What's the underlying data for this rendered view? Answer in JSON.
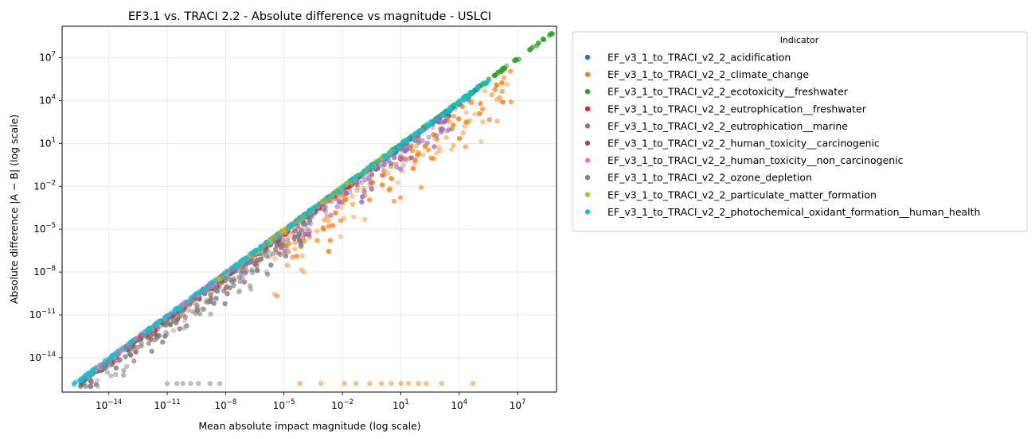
{
  "chart_data": {
    "type": "scatter",
    "title": "EF3.1 vs. TRACI 2.2 - Absolute difference vs magnitude - USLCI",
    "xlabel": "Mean absolute impact magnitude (log scale)",
    "ylabel": "Absolute difference |A − B| (log scale)",
    "xscale": "log",
    "yscale": "log",
    "xlim_log10": [
      -16.4,
      9.0
    ],
    "ylim_log10": [
      -16.4,
      9.2
    ],
    "x_ticks": [
      {
        "exp": -14,
        "base": "10",
        "sup": "−14"
      },
      {
        "exp": -11,
        "base": "10",
        "sup": "−11"
      },
      {
        "exp": -8,
        "base": "10",
        "sup": "−8"
      },
      {
        "exp": -5,
        "base": "10",
        "sup": "−5"
      },
      {
        "exp": -2,
        "base": "10",
        "sup": "−2"
      },
      {
        "exp": 1,
        "base": "10",
        "sup": "1"
      },
      {
        "exp": 4,
        "base": "10",
        "sup": "4"
      },
      {
        "exp": 7,
        "base": "10",
        "sup": "7"
      }
    ],
    "y_ticks": [
      {
        "exp": -14,
        "base": "10",
        "sup": "−14"
      },
      {
        "exp": -11,
        "base": "10",
        "sup": "−11"
      },
      {
        "exp": -8,
        "base": "10",
        "sup": "−8"
      },
      {
        "exp": -5,
        "base": "10",
        "sup": "−5"
      },
      {
        "exp": -2,
        "base": "10",
        "sup": "−2"
      },
      {
        "exp": 1,
        "base": "10",
        "sup": "1"
      },
      {
        "exp": 4,
        "base": "10",
        "sup": "4"
      },
      {
        "exp": 7,
        "base": "10",
        "sup": "7"
      }
    ],
    "grid": true,
    "legend": {
      "title": "Indicator",
      "placement": "outside-right-top"
    },
    "series": [
      {
        "name": "EF_v3_1_to_TRACI_v2_2_acidification",
        "color": "#1f77b4",
        "x_range_log10": [
          -15.5,
          5.0
        ],
        "ratio_log10": [
          -0.6,
          -0.05
        ]
      },
      {
        "name": "EF_v3_1_to_TRACI_v2_2_climate_change",
        "color": "#ff7f0e",
        "x_range_log10": [
          -5.5,
          7.0
        ],
        "ratio_log10": [
          -4.5,
          -0.5
        ],
        "floor_points_x_log10": [
          -4.2,
          -3.1,
          -1.9,
          -1.3,
          -0.6,
          0.0,
          0.5,
          1.0,
          1.4,
          1.9,
          2.3,
          3.1,
          4.7
        ],
        "floor_y_log10": -15.8
      },
      {
        "name": "EF_v3_1_to_TRACI_v2_2_ecotoxicity__freshwater",
        "color": "#2ca02c",
        "x_range_log10": [
          -6.0,
          8.8
        ],
        "ratio_log10": [
          -0.2,
          0.0
        ]
      },
      {
        "name": "EF_v3_1_to_TRACI_v2_2_eutrophication__freshwater",
        "color": "#d62728",
        "x_range_log10": [
          -13.0,
          0.0
        ],
        "ratio_log10": [
          -0.5,
          -0.05
        ]
      },
      {
        "name": "EF_v3_1_to_TRACI_v2_2_eutrophication__marine",
        "color": "#9467bd",
        "x_range_log10": [
          -8.0,
          3.5
        ],
        "ratio_log10": [
          -2.2,
          -0.1
        ]
      },
      {
        "name": "EF_v3_1_to_TRACI_v2_2_human_toxicity__carcinogenic",
        "color": "#8c564b",
        "x_range_log10": [
          -15.5,
          -5.0
        ],
        "ratio_log10": [
          -1.4,
          -0.1
        ]
      },
      {
        "name": "EF_v3_1_to_TRACI_v2_2_human_toxicity__non_carcinogenic",
        "color": "#e377c2",
        "x_range_log10": [
          -15.5,
          -4.0
        ],
        "ratio_log10": [
          -0.4,
          0.0
        ]
      },
      {
        "name": "EF_v3_1_to_TRACI_v2_2_ozone_depletion",
        "color": "#7f7f7f",
        "x_range_log10": [
          -15.5,
          -3.5
        ],
        "ratio_log10": [
          -2.6,
          -0.1
        ],
        "floor_points_x_log10": [
          -11.0,
          -10.5,
          -10.2,
          -9.8,
          -9.4,
          -8.8,
          -8.3
        ],
        "floor_y_log10": -15.8
      },
      {
        "name": "EF_v3_1_to_TRACI_v2_2_particulate_matter_formation",
        "color": "#bcbd22",
        "x_range_log10": [
          -8.5,
          0.5
        ],
        "ratio_log10": [
          -0.3,
          0.0
        ]
      },
      {
        "name": "EF_v3_1_to_TRACI_v2_2_photochemical_oxidant_formation__human_health",
        "color": "#17becf",
        "x_range_log10": [
          -15.8,
          5.5
        ],
        "ratio_log10": [
          -0.25,
          0.0
        ]
      }
    ]
  }
}
